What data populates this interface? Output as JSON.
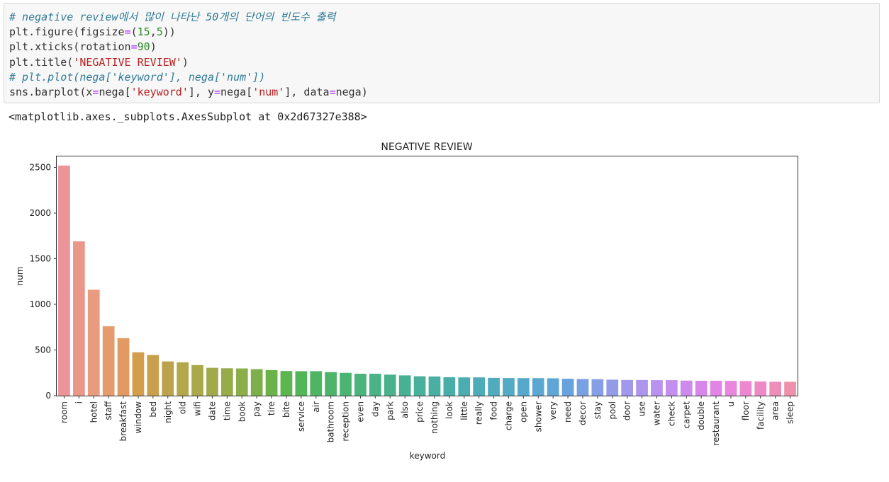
{
  "code_cell": {
    "lines": [
      [
        {
          "t": "# negative review에서 많이 나타난 50개의 단어의 빈도수 출력",
          "c": "comment"
        }
      ],
      [
        {
          "t": "plt.figure(figsize",
          "c": ""
        },
        {
          "t": "=",
          "c": "op"
        },
        {
          "t": "(",
          "c": ""
        },
        {
          "t": "15",
          "c": "num"
        },
        {
          "t": ",",
          "c": ""
        },
        {
          "t": "5",
          "c": "num"
        },
        {
          "t": "))",
          "c": ""
        }
      ],
      [
        {
          "t": "plt.xticks(rotation",
          "c": ""
        },
        {
          "t": "=",
          "c": "op"
        },
        {
          "t": "90",
          "c": "num"
        },
        {
          "t": ")",
          "c": ""
        }
      ],
      [
        {
          "t": "plt.title(",
          "c": ""
        },
        {
          "t": "'NEGATIVE REVIEW'",
          "c": "str"
        },
        {
          "t": ")",
          "c": ""
        }
      ],
      [
        {
          "t": "# plt.plot(nega['keyword'], nega['num'])",
          "c": "comment"
        }
      ],
      [
        {
          "t": "sns.barplot(x",
          "c": ""
        },
        {
          "t": "=",
          "c": "op"
        },
        {
          "t": "nega[",
          "c": ""
        },
        {
          "t": "'keyword'",
          "c": "str"
        },
        {
          "t": "], y",
          "c": ""
        },
        {
          "t": "=",
          "c": "op"
        },
        {
          "t": "nega[",
          "c": ""
        },
        {
          "t": "'num'",
          "c": "str"
        },
        {
          "t": "], data",
          "c": ""
        },
        {
          "t": "=",
          "c": "op"
        },
        {
          "t": "nega)",
          "c": ""
        }
      ]
    ]
  },
  "output": {
    "text": "<matplotlib.axes._subplots.AxesSubplot at 0x2d67327e388>"
  },
  "chart_data": {
    "type": "bar",
    "title": "NEGATIVE REVIEW",
    "xlabel": "keyword",
    "ylabel": "num",
    "ylim": [
      0,
      2620
    ],
    "yticks": [
      0,
      500,
      1000,
      1500,
      2000,
      2500
    ],
    "categories": [
      "room",
      "i",
      "hotel",
      "staff",
      "breakfast",
      "window",
      "bed",
      "night",
      "old",
      "wifi",
      "date",
      "time",
      "book",
      "pay",
      "tire",
      "bite",
      "service",
      "air",
      "bathroom",
      "reception",
      "even",
      "day",
      "park",
      "also",
      "price",
      "nothing",
      "look",
      "little",
      "really",
      "food",
      "charge",
      "open",
      "shower",
      "very",
      "need",
      "decor",
      "stay",
      "pool",
      "door",
      "use",
      "water",
      "check",
      "carpet",
      "double",
      "restaurant",
      "u",
      "floor",
      "facility",
      "area",
      "sleep"
    ],
    "values": [
      2520,
      1690,
      1160,
      760,
      630,
      475,
      445,
      375,
      365,
      335,
      305,
      300,
      298,
      290,
      280,
      270,
      268,
      268,
      258,
      250,
      240,
      240,
      230,
      222,
      212,
      210,
      202,
      200,
      200,
      195,
      193,
      192,
      192,
      190,
      185,
      182,
      180,
      175,
      172,
      172,
      170,
      170,
      165,
      163,
      163,
      162,
      160,
      155,
      152,
      152
    ],
    "colors": [
      "#ed949a",
      "#ea9689",
      "#e99b7e",
      "#e59b6b",
      "#e29a62",
      "#d39d4c",
      "#c8a04d",
      "#bca24b",
      "#b3a64b",
      "#a9a84a",
      "#a0aa4a",
      "#96ac4a",
      "#8bad4a",
      "#7db04a",
      "#6cb24b",
      "#5db54f",
      "#52b658",
      "#4fb562",
      "#4eb46b",
      "#4cb473",
      "#4bb37c",
      "#4ab284",
      "#49b28c",
      "#48b194",
      "#49b09b",
      "#49afa2",
      "#4aaea8",
      "#4badb0",
      "#4eacb8",
      "#50abbe",
      "#53aac4",
      "#56a9ca",
      "#5aa8d1",
      "#5fa6d7",
      "#68a2de",
      "#78a0e2",
      "#859ee6",
      "#939be9",
      "#9f98ec",
      "#ad95ed",
      "#b892ee",
      "#c38eee",
      "#cd8aed",
      "#d786eb",
      "#e085e6",
      "#e887dd",
      "#ec88d2",
      "#ed8ac6",
      "#ee8db8",
      "#ee90ab"
    ]
  }
}
